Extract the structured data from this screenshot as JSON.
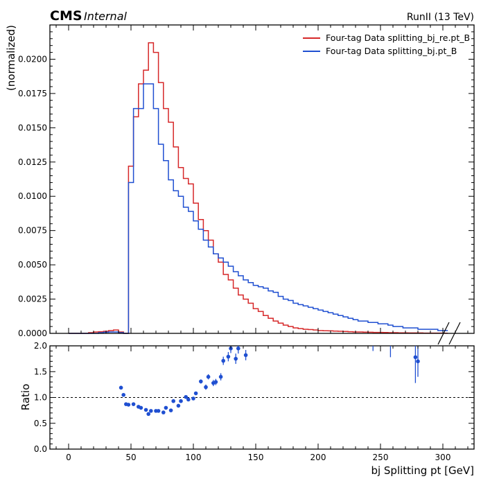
{
  "header": {
    "experiment": "CMS",
    "status": "Internal",
    "run_label": "RunII (13 TeV)"
  },
  "colors": {
    "red": "#d62728",
    "blue": "#1f4fd1",
    "axis": "#000000"
  },
  "chart_data": [
    {
      "type": "step",
      "panel": "top",
      "ylabel": "(normalized)",
      "xlim": [
        -15,
        325
      ],
      "ylim": [
        0,
        0.0225
      ],
      "xticks": [
        0,
        50,
        100,
        150,
        200,
        250,
        300
      ],
      "yticks": [
        0,
        0.0025,
        0.005,
        0.0075,
        0.01,
        0.0125,
        0.015,
        0.0175,
        0.02
      ],
      "ytick_labels": [
        "0.0000",
        "0.0025",
        "0.0050",
        "0.0075",
        "0.0100",
        "0.0125",
        "0.0150",
        "0.0175",
        "0.0200"
      ],
      "legend_position": "top-right",
      "bin_width": 4,
      "bin_edges_start": 0,
      "series": [
        {
          "name": "Four-tag Data splitting_bj_re.pt_B",
          "color": "#d62728",
          "values": [
            0.0,
            0.0,
            0.0,
            0.0,
            5e-05,
            0.0001,
            0.00012,
            0.00015,
            0.0002,
            0.00025,
            0.0001,
            0.0,
            0.0122,
            0.0158,
            0.0182,
            0.0192,
            0.0212,
            0.0205,
            0.0183,
            0.0164,
            0.0154,
            0.0136,
            0.0121,
            0.0113,
            0.0109,
            0.0095,
            0.0083,
            0.0075,
            0.0068,
            0.0058,
            0.0052,
            0.0043,
            0.0039,
            0.0033,
            0.0028,
            0.0025,
            0.0022,
            0.0018,
            0.0016,
            0.0013,
            0.0011,
            0.0009,
            0.00075,
            0.0006,
            0.0005,
            0.0004,
            0.00035,
            0.0003,
            0.00028,
            0.00025,
            0.0002,
            0.00019,
            0.00018,
            0.00016,
            0.00015,
            0.00014,
            0.00012,
            0.0001,
            0.0001,
            9e-05,
            8e-05,
            7e-05,
            7e-05,
            6e-05,
            5e-05,
            5e-05,
            4e-05,
            4e-05,
            3e-05,
            3e-05,
            3e-05,
            2e-05,
            2e-05,
            2e-05,
            2e-05,
            1e-05
          ]
        },
        {
          "name": "Four-tag Data splitting_bj.pt_B",
          "color": "#1f4fd1",
          "values": [
            0.0,
            0.0,
            0.0,
            0.0,
            0.0,
            0.0,
            5e-05,
            8e-05,
            0.0001,
            0.0001,
            5e-05,
            0.0,
            0.011,
            0.0164,
            0.0164,
            0.0182,
            0.0182,
            0.0164,
            0.0138,
            0.0126,
            0.0112,
            0.0104,
            0.01,
            0.0092,
            0.0089,
            0.0082,
            0.0076,
            0.0068,
            0.0063,
            0.0058,
            0.0055,
            0.0052,
            0.0049,
            0.0045,
            0.0042,
            0.0039,
            0.0037,
            0.0035,
            0.0034,
            0.0033,
            0.0031,
            0.003,
            0.0027,
            0.0025,
            0.0024,
            0.0022,
            0.0021,
            0.002,
            0.0019,
            0.0018,
            0.0017,
            0.0016,
            0.0015,
            0.0014,
            0.0013,
            0.0012,
            0.0011,
            0.001,
            0.0009,
            0.0009,
            0.0008,
            0.0008,
            0.0007,
            0.0007,
            0.0006,
            0.0005,
            0.0005,
            0.0004,
            0.0004,
            0.0004,
            0.0003,
            0.0003,
            0.0003,
            0.0003,
            0.0002,
            0.0002
          ]
        }
      ]
    },
    {
      "type": "scatter",
      "panel": "bottom",
      "ylabel": "Ratio",
      "xlabel": "bj Splitting pt [GeV]",
      "xlim": [
        -15,
        325
      ],
      "ylim": [
        0,
        2
      ],
      "xticks": [
        0,
        50,
        100,
        150,
        200,
        250,
        300
      ],
      "yticks": [
        0,
        0.5,
        1.0,
        1.5,
        2.0
      ],
      "ytick_labels": [
        "0.0",
        "0.5",
        "1.0",
        "1.5",
        "2.0"
      ],
      "reference_line": 1.0,
      "color": "#1f4fd1",
      "points": [
        {
          "x": 42,
          "y": 1.19,
          "err": 0.0
        },
        {
          "x": 44,
          "y": 1.05,
          "err": 0.0
        },
        {
          "x": 46,
          "y": 0.87,
          "err": 0.0
        },
        {
          "x": 48,
          "y": 0.86,
          "err": 0.0
        },
        {
          "x": 52,
          "y": 0.87,
          "err": 0.0
        },
        {
          "x": 56,
          "y": 0.82,
          "err": 0.0
        },
        {
          "x": 58,
          "y": 0.8,
          "err": 0.0
        },
        {
          "x": 62,
          "y": 0.76,
          "err": 0.0
        },
        {
          "x": 64,
          "y": 0.68,
          "err": 0.0
        },
        {
          "x": 66,
          "y": 0.74,
          "err": 0.0
        },
        {
          "x": 70,
          "y": 0.74,
          "err": 0.0
        },
        {
          "x": 72,
          "y": 0.74,
          "err": 0.0
        },
        {
          "x": 76,
          "y": 0.71,
          "err": 0.0
        },
        {
          "x": 78,
          "y": 0.8,
          "err": 0.0
        },
        {
          "x": 82,
          "y": 0.75,
          "err": 0.0
        },
        {
          "x": 84,
          "y": 0.93,
          "err": 0.0
        },
        {
          "x": 88,
          "y": 0.84,
          "err": 0.0
        },
        {
          "x": 90,
          "y": 0.93,
          "err": 0.02
        },
        {
          "x": 94,
          "y": 1.01,
          "err": 0.02
        },
        {
          "x": 96,
          "y": 0.96,
          "err": 0.02
        },
        {
          "x": 100,
          "y": 0.98,
          "err": 0.03
        },
        {
          "x": 102,
          "y": 1.08,
          "err": 0.03
        },
        {
          "x": 106,
          "y": 1.31,
          "err": 0.04
        },
        {
          "x": 110,
          "y": 1.2,
          "err": 0.05
        },
        {
          "x": 112,
          "y": 1.4,
          "err": 0.05
        },
        {
          "x": 116,
          "y": 1.28,
          "err": 0.06
        },
        {
          "x": 118,
          "y": 1.3,
          "err": 0.06
        },
        {
          "x": 122,
          "y": 1.4,
          "err": 0.07
        },
        {
          "x": 124,
          "y": 1.71,
          "err": 0.08
        },
        {
          "x": 128,
          "y": 1.79,
          "err": 0.09
        },
        {
          "x": 130,
          "y": 1.95,
          "err": 0.09
        },
        {
          "x": 134,
          "y": 1.75,
          "err": 0.1
        },
        {
          "x": 136,
          "y": 1.95,
          "err": 0.1
        },
        {
          "x": 142,
          "y": 1.82,
          "err": 0.1
        },
        {
          "x": 278,
          "y": 1.78,
          "err": 0.5
        },
        {
          "x": 280,
          "y": 1.7,
          "err": 0.3
        }
      ],
      "overflow_markers": [
        {
          "x": 244,
          "err_low": 1.9
        },
        {
          "x": 258,
          "err_low": 1.78
        }
      ]
    }
  ]
}
